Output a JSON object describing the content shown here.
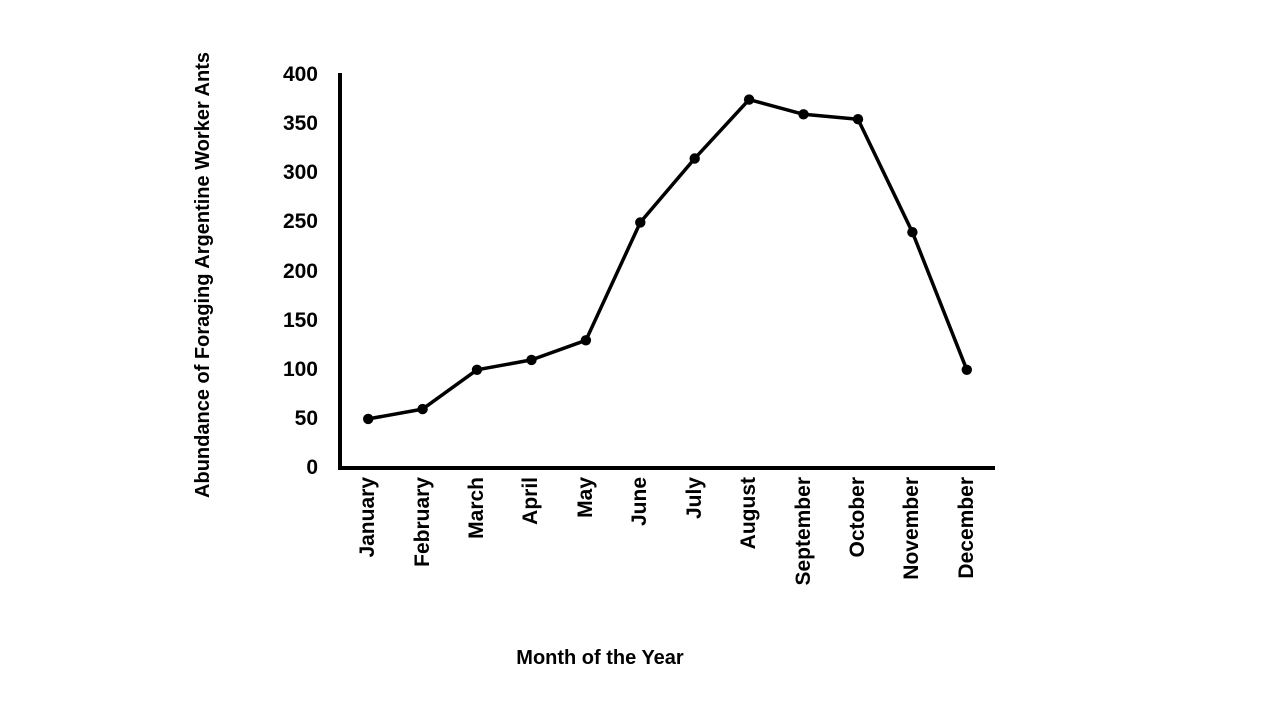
{
  "chart_data": {
    "type": "line",
    "title": "",
    "xlabel": "Month of the Year",
    "ylabel": "Abundance of Foraging Argentine Worker Ants",
    "categories": [
      "January",
      "February",
      "March",
      "April",
      "May",
      "June",
      "July",
      "August",
      "September",
      "October",
      "November",
      "December"
    ],
    "values": [
      50,
      60,
      100,
      110,
      130,
      250,
      315,
      375,
      360,
      355,
      240,
      100
    ],
    "ylim": [
      0,
      400
    ],
    "ytick_step": 50,
    "yticks": [
      "400",
      "350",
      "300",
      "250",
      "200",
      "150",
      "100",
      "50",
      "0"
    ],
    "grid": false,
    "legend": "none",
    "line_color": "#000000",
    "marker_color": "#000000",
    "marker": "circle",
    "background_color": "#ffffff"
  }
}
